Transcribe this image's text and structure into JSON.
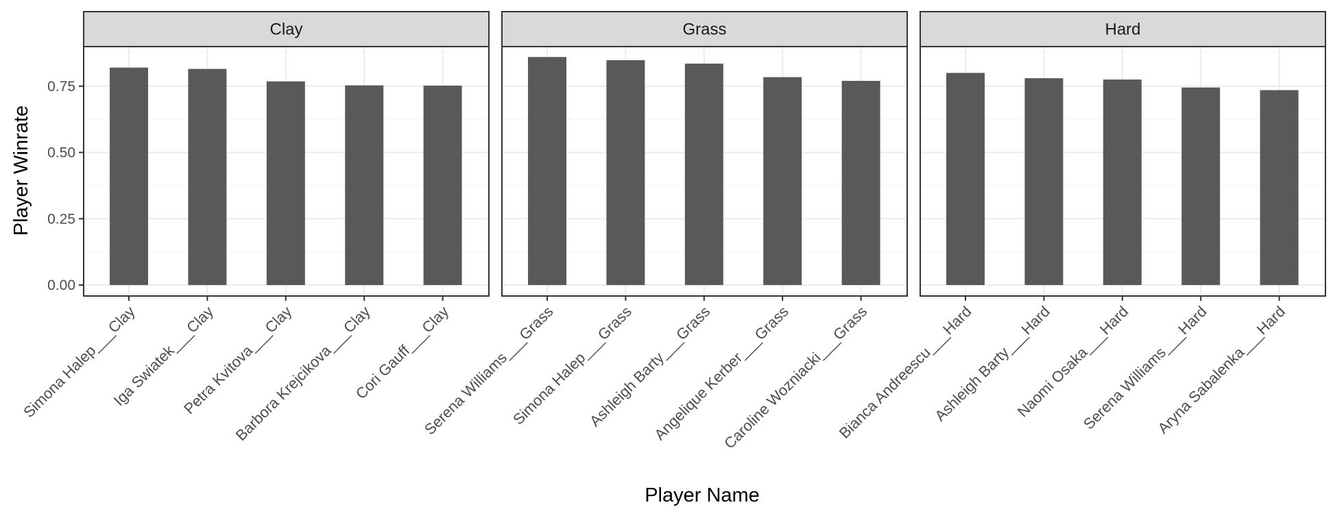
{
  "chart_data": {
    "type": "bar",
    "xlabel": "Player Name",
    "ylabel": "Player Winrate",
    "ylim": [
      0,
      0.93
    ],
    "yticks": [
      "0.00",
      "0.25",
      "0.50",
      "0.75"
    ],
    "grid": true,
    "theme": "bw",
    "bar_color": "#595959",
    "strip_fill": "#d9d9d9",
    "panels": [
      {
        "strip": "Clay",
        "categories": [
          "Simona Halep___Clay",
          "Iga Swiatek___Clay",
          "Petra Kvitova___Clay",
          "Barbora Krejcikova___Clay",
          "Cori Gauff___Clay"
        ],
        "values": [
          0.82,
          0.815,
          0.768,
          0.753,
          0.752
        ]
      },
      {
        "strip": "Grass",
        "categories": [
          "Serena Williams___Grass",
          "Simona Halep___Grass",
          "Ashleigh Barty___Grass",
          "Angelique Kerber___Grass",
          "Caroline Wozniacki___Grass"
        ],
        "values": [
          0.86,
          0.848,
          0.835,
          0.784,
          0.77
        ]
      },
      {
        "strip": "Hard",
        "categories": [
          "Bianca Andreescu___Hard",
          "Ashleigh Barty___Hard",
          "Naomi Osaka___Hard",
          "Serena Williams___Hard",
          "Aryna Sabalenka___Hard"
        ],
        "values": [
          0.8,
          0.78,
          0.775,
          0.745,
          0.735
        ]
      }
    ]
  }
}
